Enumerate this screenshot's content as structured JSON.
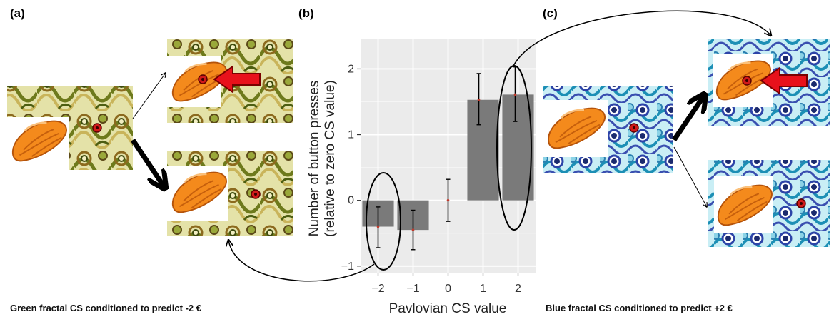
{
  "panel_labels": {
    "a": "(a)",
    "b": "(b)",
    "c": "(c)"
  },
  "captions": {
    "left": "Green fractal CS conditioned to predict -2 €",
    "right": "Blue fractal CS conditioned to predict +2 €"
  },
  "colors": {
    "bar": "#7a7a7a",
    "panel_bg": "#ebebeb",
    "grid": "#ffffff",
    "arrow_red": "#e8111b",
    "fish_orange": "#f48a1c",
    "green_fractal": "#b9c24a",
    "blue_fractal": "#39a9c9"
  },
  "icons": {
    "fish": "orange-fish-icon",
    "response_arrow": "red-arrow-icon",
    "fixation": "red-dot-icon"
  },
  "chart_data": {
    "type": "bar",
    "title": "",
    "xlabel": "Pavlovian CS value",
    "ylabel": "Number of button presses",
    "ylabel_sub": "(relative to zero CS value)",
    "categories": [
      "−2",
      "−1",
      "0",
      "1",
      "2"
    ],
    "values": [
      -0.4,
      -0.45,
      0.0,
      1.53,
      1.61
    ],
    "errors_low": [
      -0.72,
      -0.75,
      -0.32,
      1.15,
      1.2
    ],
    "errors_high": [
      -0.1,
      -0.15,
      0.32,
      1.93,
      2.03
    ],
    "ylim": [
      -1.1,
      2.45
    ],
    "yticks": [
      -1,
      0,
      1,
      2
    ],
    "yticklabels": [
      "−1",
      "0",
      "1",
      "2"
    ],
    "grid": true,
    "highlighted_categories": [
      "−2",
      "2"
    ]
  }
}
